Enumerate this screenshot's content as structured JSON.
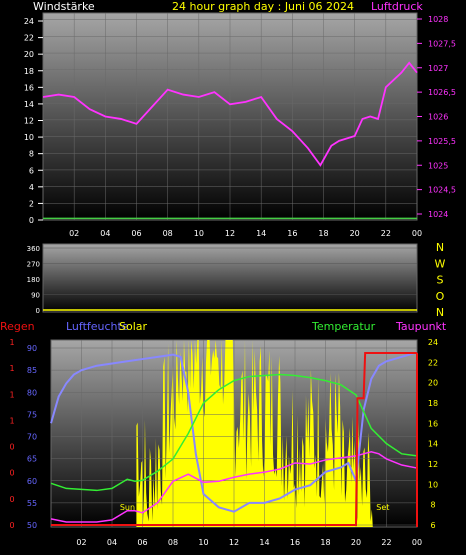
{
  "colors": {
    "wind": "#ffffff",
    "pressure": "#ff33ff",
    "title": "#ffff00",
    "humidity": "#8888ff",
    "solar": "#ffff00",
    "temperature": "#33ee33",
    "dewpoint": "#ff33ff",
    "rain": "#ee1111",
    "winddir": "#ffff00",
    "rain_axis": "#ff2222",
    "hum_axis": "#6666ff",
    "temp_axis": "#ffff00"
  },
  "chart_data": [
    {
      "type": "line",
      "title": "24 hour graph day : Juni 06 2024",
      "y_left_label": "Windstärke",
      "y_right_label": "Luftdruck",
      "x_ticks": [
        "02",
        "04",
        "06",
        "08",
        "10",
        "12",
        "14",
        "16",
        "18",
        "20",
        "22",
        "00"
      ],
      "y_left_ticks": [
        "0",
        "2",
        "4",
        "6",
        "8",
        "10",
        "12",
        "14",
        "16",
        "18",
        "20",
        "22",
        "24"
      ],
      "y_left_range": [
        0,
        24
      ],
      "y_right_ticks": [
        "1024",
        "1024,5",
        "1025",
        "1025,5",
        "1026",
        "1026,5",
        "1027",
        "1027,5",
        "1028"
      ],
      "y_right_range": [
        1024,
        1028
      ],
      "x_range": [
        0,
        24
      ],
      "series": [
        {
          "name": "Luftdruck",
          "axis": "right",
          "x": [
            0,
            1,
            2,
            3,
            4,
            5,
            6,
            7,
            8,
            9,
            10,
            11,
            12,
            13,
            14,
            15,
            16,
            17,
            17.8,
            18.5,
            19,
            20,
            20.5,
            21,
            21.5,
            22,
            22.5,
            23,
            23.5,
            24
          ],
          "values": [
            1026.4,
            1026.45,
            1026.4,
            1026.15,
            1026.0,
            1025.95,
            1025.85,
            1026.2,
            1026.55,
            1026.45,
            1026.4,
            1026.5,
            1026.25,
            1026.3,
            1026.4,
            1025.95,
            1025.7,
            1025.35,
            1025.0,
            1025.4,
            1025.5,
            1025.6,
            1025.95,
            1026.0,
            1025.95,
            1026.6,
            1026.75,
            1026.9,
            1027.1,
            1026.9
          ]
        },
        {
          "name": "Windstärke",
          "axis": "left",
          "x": [
            0,
            24
          ],
          "values": [
            0.2,
            0.2
          ]
        }
      ]
    },
    {
      "type": "line",
      "y_left_ticks": [
        "0",
        "90",
        "180",
        "270",
        "360"
      ],
      "y_left_range": [
        0,
        360
      ],
      "y_right_ticks": [
        "N",
        "W",
        "S",
        "O",
        "N"
      ],
      "series": [
        {
          "name": "Windrichtung",
          "x": [
            0,
            24
          ],
          "values": [
            0,
            0
          ]
        }
      ]
    },
    {
      "type": "line",
      "legend": [
        "Regen",
        "Luftfeuchte",
        "Solar",
        "Temperatur",
        "Taupunkt"
      ],
      "annotations": [
        "Sun",
        "Set"
      ],
      "x_ticks": [
        "02",
        "04",
        "06",
        "08",
        "10",
        "12",
        "14",
        "16",
        "18",
        "20",
        "22",
        "00"
      ],
      "x_range": [
        0,
        24
      ],
      "rain_ticks": [
        "0",
        "0",
        "0",
        "0",
        "1",
        "1",
        "1",
        "1"
      ],
      "humidity_ticks": [
        "50",
        "55",
        "60",
        "65",
        "70",
        "75",
        "80",
        "85",
        "90"
      ],
      "humidity_range": [
        50,
        90
      ],
      "temp_ticks": [
        "6",
        "8",
        "10",
        "12",
        "14",
        "16",
        "18",
        "20",
        "22",
        "24"
      ],
      "temp_range": [
        6,
        24
      ],
      "series": [
        {
          "name": "Luftfeuchte",
          "axis": "humidity",
          "x": [
            0,
            0.5,
            1,
            1.5,
            2,
            3,
            4,
            5,
            6,
            7,
            8,
            8.5,
            9,
            9.5,
            10,
            11,
            12,
            13,
            14,
            15,
            16,
            17,
            18,
            19,
            19.5,
            20,
            20.5,
            21,
            21.5,
            22,
            23,
            24
          ],
          "values": [
            73,
            79,
            82,
            84,
            85,
            86,
            86.5,
            87,
            87.5,
            88,
            88.5,
            88,
            80,
            66,
            57,
            54,
            53,
            55,
            55,
            56,
            58,
            59,
            62,
            63,
            64,
            60,
            76,
            83,
            86,
            87,
            88,
            89
          ]
        },
        {
          "name": "Temperatur",
          "axis": "temp",
          "x": [
            0,
            1,
            2,
            3,
            4,
            5,
            5.5,
            6,
            7,
            8,
            9,
            10,
            11,
            12,
            13,
            14,
            15,
            16,
            17,
            18,
            19,
            20,
            21,
            22,
            23,
            24
          ],
          "values": [
            10.1,
            9.6,
            9.5,
            9.4,
            9.6,
            10.5,
            10.3,
            10.4,
            11.3,
            12.5,
            15,
            18,
            19.3,
            20.2,
            20.6,
            20.7,
            20.8,
            20.7,
            20.5,
            20.2,
            19.8,
            18.8,
            15.5,
            14,
            13,
            12.8
          ]
        },
        {
          "name": "Taupunkt",
          "axis": "temp",
          "x": [
            0,
            1,
            2,
            3,
            4,
            5,
            5.5,
            6,
            7,
            8,
            9,
            10,
            11,
            12,
            13,
            14,
            15,
            16,
            17,
            18,
            19,
            20,
            20.5,
            21,
            21.5,
            22,
            23,
            24
          ],
          "values": [
            6.6,
            6.3,
            6.3,
            6.3,
            6.5,
            7.4,
            7.4,
            7.2,
            8.2,
            10.3,
            11,
            10.2,
            10.3,
            10.7,
            11.0,
            11.2,
            11.5,
            12.1,
            12.0,
            12.4,
            12.6,
            12.8,
            13,
            13.2,
            13.0,
            12.5,
            11.9,
            11.6
          ]
        },
        {
          "name": "Regen",
          "axis": "rain",
          "x": [
            0,
            20,
            20.1,
            20.5,
            20.6,
            24
          ],
          "values": [
            0,
            0,
            0.7,
            0.7,
            0.95,
            0.95
          ]
        }
      ]
    }
  ]
}
